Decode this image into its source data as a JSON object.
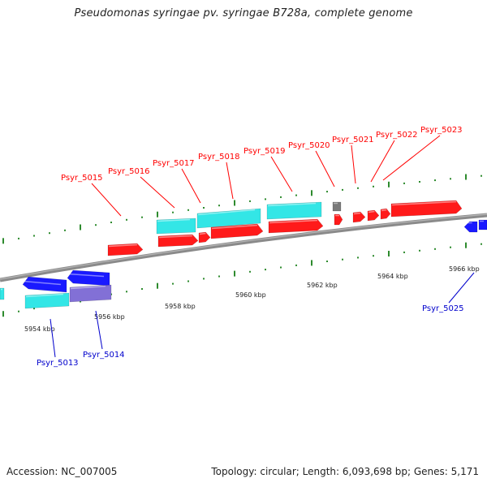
{
  "title": "Pseudomonas syringae pv. syringae B728a, complete genome",
  "footer": {
    "accession": "Accession: NC_007005",
    "summary": "Topology: circular; Length: 6,093,698 bp; Genes: 5,171"
  },
  "colors": {
    "background": "#ffffff",
    "backbone": "#8a8a8a",
    "forward_cds": "#ff1a1a",
    "reverse_cds": "#1a1aff",
    "forward_rna": "#33e6e6",
    "reverse_rna": "#33e6e6",
    "reverse_other": "#8270d6",
    "pseudo_gene": "#7a7a7a",
    "tick_major": "#2e8b2e",
    "tick_minor": "#2e8b2e",
    "forward_label": "#ff0000",
    "reverse_label": "#0000cc"
  },
  "scale": {
    "unit": "kbp",
    "labels": [
      "5954 kbp",
      "5956 kbp",
      "5958 kbp",
      "5960 kbp",
      "5962 kbp",
      "5964 kbp",
      "5966 kbp"
    ]
  },
  "genes": {
    "forward_labels": [
      "Psyr_5015",
      "Psyr_5016",
      "Psyr_5017",
      "Psyr_5018",
      "Psyr_5019",
      "Psyr_5020",
      "Psyr_5021",
      "Psyr_5022",
      "Psyr_5023"
    ],
    "reverse_labels": [
      "Psyr_5013",
      "Psyr_5014",
      "Psyr_5025"
    ]
  }
}
